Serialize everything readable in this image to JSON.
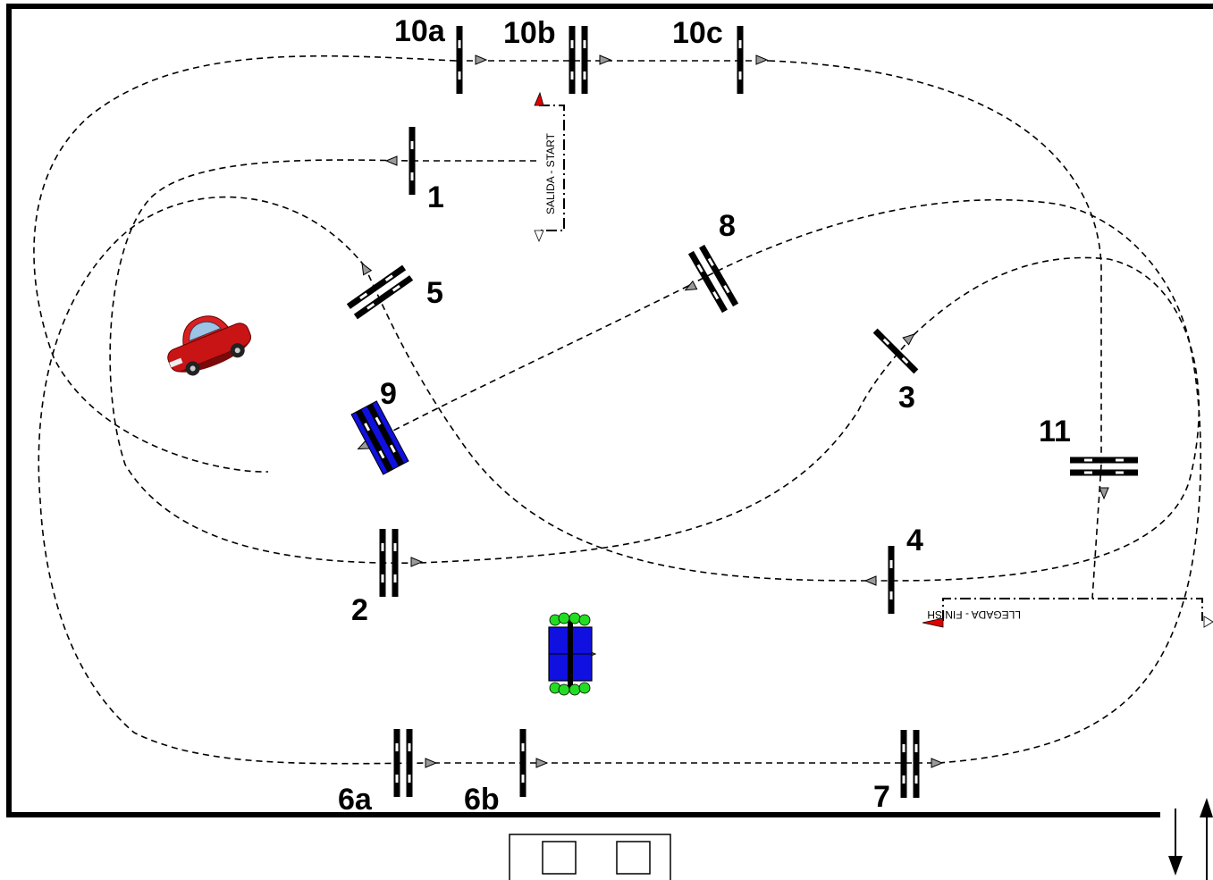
{
  "course": {
    "start_label": "SALIDA - START",
    "finish_label": "LLEGADA - FINISH",
    "gates": [
      {
        "id": "g1",
        "label": "1"
      },
      {
        "id": "g2",
        "label": "2"
      },
      {
        "id": "g3",
        "label": "3"
      },
      {
        "id": "g4",
        "label": "4"
      },
      {
        "id": "g5",
        "label": "5"
      },
      {
        "id": "g6a",
        "label": "6a"
      },
      {
        "id": "g6b",
        "label": "6b"
      },
      {
        "id": "g7",
        "label": "7"
      },
      {
        "id": "g8",
        "label": "8"
      },
      {
        "id": "g9",
        "label": "9"
      },
      {
        "id": "g10a",
        "label": "10a"
      },
      {
        "id": "g10b",
        "label": "10b"
      },
      {
        "id": "g10c",
        "label": "10c"
      },
      {
        "id": "g11",
        "label": "11"
      }
    ]
  },
  "colors": {
    "gate": "#000000",
    "blue_gate": "#1010e0",
    "flag": "#e00000",
    "car_body": "#c81414",
    "parking_wheels": "#22dd22",
    "path": "#000000"
  },
  "icons": {
    "car": "red-car-icon",
    "parking_box": "parking-box-icon",
    "flag": "red-flag-icon"
  }
}
